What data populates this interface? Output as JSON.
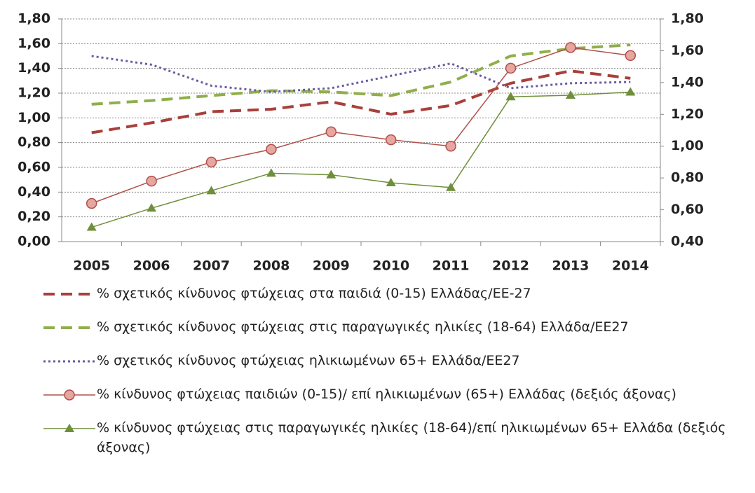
{
  "chart_data": {
    "type": "line",
    "categories": [
      "2005",
      "2006",
      "2007",
      "2008",
      "2009",
      "2010",
      "2011",
      "2012",
      "2013",
      "2014"
    ],
    "ylim": [
      0,
      1.8
    ],
    "yticks": [
      {
        "value": 0,
        "label": "0,00"
      },
      {
        "value": 0.2,
        "label": "0,20"
      },
      {
        "value": 0.4,
        "label": "0,40"
      },
      {
        "value": 0.6,
        "label": "0,60"
      },
      {
        "value": 0.8,
        "label": "0,80"
      },
      {
        "value": 1.0,
        "label": "1,00"
      },
      {
        "value": 1.2,
        "label": "1,20"
      },
      {
        "value": 1.4,
        "label": "1,40"
      },
      {
        "value": 1.6,
        "label": "1,60"
      },
      {
        "value": 1.8,
        "label": "1,80"
      }
    ],
    "y2lim": [
      0.4,
      1.8
    ],
    "y2ticks": [
      {
        "value": 0.4,
        "label": "0,40"
      },
      {
        "value": 0.6,
        "label": "0,60"
      },
      {
        "value": 0.8,
        "label": "0,80"
      },
      {
        "value": 1.0,
        "label": "1,00"
      },
      {
        "value": 1.2,
        "label": "1,20"
      },
      {
        "value": 1.4,
        "label": "1,40"
      },
      {
        "value": 1.6,
        "label": "1,60"
      },
      {
        "value": 1.8,
        "label": "1,80"
      }
    ],
    "grid": true,
    "series": [
      {
        "name": "% σχετικός κίνδυνος φτώχειας στα παιδιά (0-15)  Ελλάδας/ΕΕ-27",
        "color": "#a9403a",
        "style": "dashed",
        "values": [
          0.88,
          0.96,
          1.05,
          1.07,
          1.13,
          1.03,
          1.1,
          1.28,
          1.38,
          1.32
        ]
      },
      {
        "name": "% σχετικός κίνδυνος φτώχειας στις παραγωγικές ηλικίες  (18-64)  Ελλάδα/ΕΕ27",
        "color": "#8faf4a",
        "style": "dashed",
        "values": [
          1.11,
          1.14,
          1.18,
          1.22,
          1.21,
          1.18,
          1.29,
          1.5,
          1.56,
          1.59
        ]
      },
      {
        "name": "% σχετικός κίνδυνος φτώχειας ηλικιωμένων 65+  Ελλάδα/ΕΕ27",
        "color": "#6a5aa0",
        "style": "dotted",
        "values": [
          1.5,
          1.43,
          1.26,
          1.21,
          1.24,
          1.34,
          1.44,
          1.24,
          1.28,
          1.29
        ]
      },
      {
        "name": "% κίνδυνος φτώχειας παιδιών  (0-15)/  επί ηλικιωμένων  (65+)  Ελλάδας (δεξιός άξονας)",
        "color": "#b0504a",
        "style": "solid",
        "marker": "circle",
        "axis": "y2",
        "values": [
          0.64,
          0.78,
          0.9,
          0.98,
          1.09,
          1.04,
          1.0,
          1.49,
          1.62,
          1.57
        ]
      },
      {
        "name": "% κίνδυνος φτώχειας στις παραγωγικές ηλικίες  (18-64)/επί ηλικιωμένων 65+ Ελλάδα (δεξιός άξονας)",
        "color": "#6f8f3a",
        "style": "solid",
        "marker": "triangle",
        "axis": "y2",
        "values": [
          0.49,
          0.61,
          0.72,
          0.83,
          0.82,
          0.77,
          0.74,
          1.31,
          1.32,
          1.34
        ]
      }
    ]
  }
}
